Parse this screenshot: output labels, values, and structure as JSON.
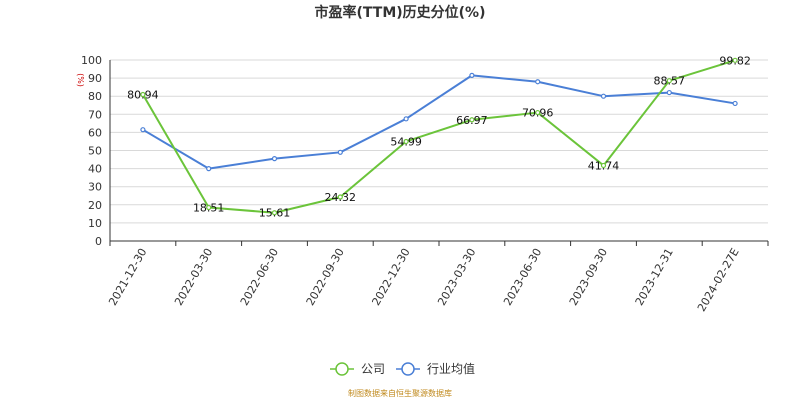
{
  "chart_data": {
    "type": "line",
    "title": "市盈率(TTM)历史分位(%)",
    "ylabel": "(%)",
    "ylim": [
      0,
      100
    ],
    "yticks": [
      0,
      10,
      20,
      30,
      40,
      50,
      60,
      70,
      80,
      90,
      100
    ],
    "categories": [
      "2021-12-30",
      "2022-03-30",
      "2022-06-30",
      "2022-09-30",
      "2022-12-30",
      "2023-03-30",
      "2023-06-30",
      "2023-09-30",
      "2023-12-31",
      "2024-02-27E"
    ],
    "series": [
      {
        "name": "公司",
        "color": "#6bc43a",
        "values": [
          80.94,
          18.51,
          15.61,
          24.32,
          54.99,
          66.97,
          70.96,
          41.74,
          88.57,
          99.82
        ],
        "labels": [
          "80.94",
          "18.51",
          "15.61",
          "24.32",
          "54.99",
          "66.97",
          "70.96",
          "41.74",
          "88.57",
          "99.82"
        ]
      },
      {
        "name": "行业均值",
        "color": "#4a7fd6",
        "values": [
          61.5,
          40.0,
          45.5,
          49.0,
          67.5,
          91.5,
          88.0,
          80.0,
          82.0,
          76.0
        ]
      }
    ],
    "grid": true,
    "legend_position": "bottom-center"
  },
  "source": "制图数据来自恒生聚源数据库"
}
